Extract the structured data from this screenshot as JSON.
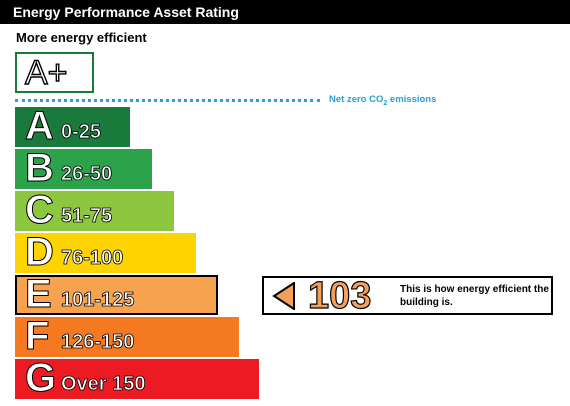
{
  "title": "Energy Performance Asset Rating",
  "subtitle": "More energy efficient",
  "top_band": {
    "label": "A+",
    "color": "#1a7a3c"
  },
  "net_zero": {
    "label_prefix": "Net zero CO",
    "label_sub": "2",
    "label_suffix": " emissions",
    "color": "#2a9fd6"
  },
  "chart_data": {
    "type": "bar",
    "title": "Energy Performance Asset Rating",
    "bands": [
      {
        "letter": "A",
        "range": "0-25",
        "color": "#1a7a3c",
        "length": 0.47
      },
      {
        "letter": "B",
        "range": "26-50",
        "color": "#2ca24a",
        "length": 0.56
      },
      {
        "letter": "C",
        "range": "51-75",
        "color": "#8dc63f",
        "length": 0.65
      },
      {
        "letter": "D",
        "range": "76-100",
        "color": "#fdd400",
        "length": 0.74
      },
      {
        "letter": "E",
        "range": "101-125",
        "color": "#f7a24f",
        "length": 0.83
      },
      {
        "letter": "F",
        "range": "126-150",
        "color": "#f47920",
        "length": 0.92
      },
      {
        "letter": "G",
        "range": "Over 150",
        "color": "#ec1b23",
        "length": 1.0
      }
    ],
    "current_rating": {
      "value": "103",
      "band": "E",
      "color": "#f5a05a"
    }
  },
  "rating_caption": "This is how energy efficient the building is."
}
